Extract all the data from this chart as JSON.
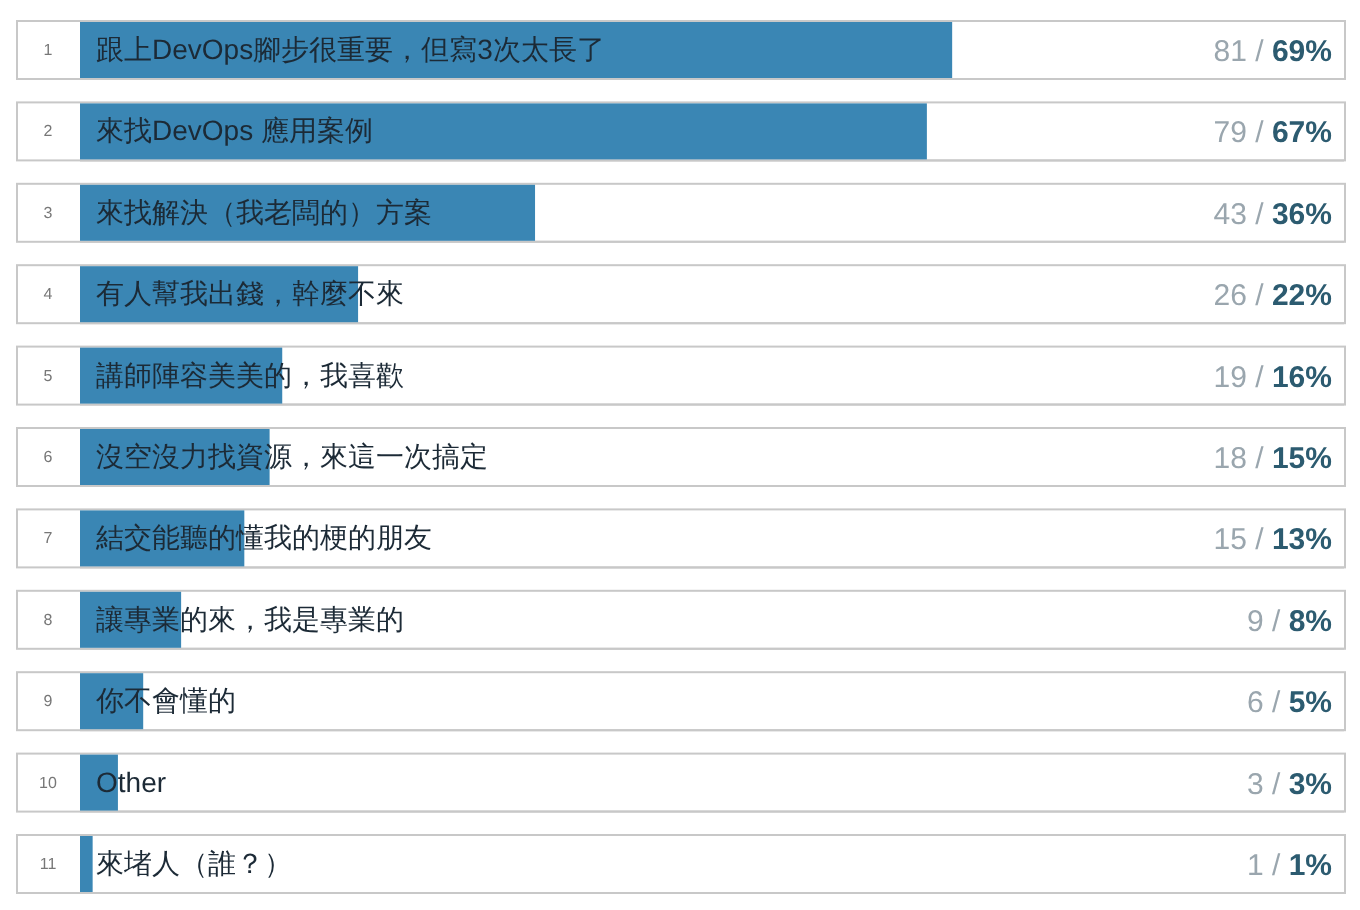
{
  "chart_data": {
    "type": "bar",
    "orientation": "horizontal",
    "categories": [
      "跟上DevOps腳步很重要，但寫3次太長了",
      "來找DevOps 應用案例",
      "來找解決（我老闆的）方案",
      "有人幫我出錢，幹麼不來",
      "講師陣容美美的，我喜歡",
      "沒空沒力找資源，來這一次搞定",
      "結交能聽的懂我的梗的朋友",
      "讓專業的來，我是專業的",
      "你不會懂的",
      "Other",
      "來堵人（誰？）"
    ],
    "values": [
      69,
      67,
      36,
      22,
      16,
      15,
      13,
      8,
      5,
      3,
      1
    ],
    "value_labels": [
      "81 / 69%",
      "79 / 67%",
      "43 / 36%",
      "26 / 22%",
      "19 / 16%",
      "18 / 15%",
      "15 / 13%",
      "9 / 8%",
      "6 / 5%",
      "3 / 3%",
      "1 / 1%"
    ],
    "annotations": [
      "1",
      "2",
      "3",
      "4",
      "5",
      "6",
      "7",
      "8",
      "9",
      "10",
      "11"
    ],
    "color": "#3a86b4",
    "xlim": [
      0,
      100
    ]
  }
}
